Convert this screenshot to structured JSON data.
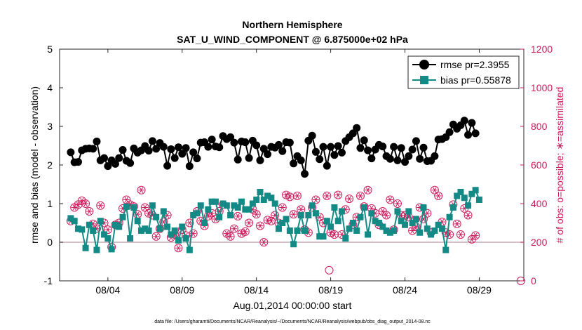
{
  "chart_data": {
    "type": "line",
    "title_line1": "Northern Hemisphere",
    "title_line2": "SAT_U_WIND_COMPONENT @ 6.875000e+02 hPa",
    "xlabel": "Aug.01,2014 00:00:00 start",
    "ylabel_left": "rmse and bias (model - observation)",
    "ylabel_right": "# of obs: o=possible; ∗=assimilated",
    "footer": "data file: /Users/gharamti/Documents/NCAR/Reanalysis/~/Documents/NCAR/Reanalysis/webpub/obs_diag_output_2014-08.nc",
    "x_range_days": [
      0.25,
      31.5
    ],
    "x_ticks": [
      {
        "day": 3.5,
        "label": "08/04"
      },
      {
        "day": 8.5,
        "label": "08/09"
      },
      {
        "day": 13.5,
        "label": "08/14"
      },
      {
        "day": 18.5,
        "label": "08/19"
      },
      {
        "day": 23.5,
        "label": "08/24"
      },
      {
        "day": 28.5,
        "label": "08/29"
      }
    ],
    "y_left_range": [
      -1,
      5
    ],
    "y_left_ticks": [
      "-1",
      "0",
      "1",
      "2",
      "3",
      "4",
      "5"
    ],
    "y_right_range": [
      0,
      1200
    ],
    "y_right_ticks": [
      "0",
      "200",
      "400",
      "600",
      "800",
      "1000",
      "1200"
    ],
    "colors": {
      "rmse": "#000000",
      "bias": "#148a87",
      "obs": "#cc1b5b",
      "zero_line": "#c9a9b5"
    },
    "series": [
      {
        "name": "rmse pr=2.3955",
        "axis": "left",
        "values": [
          2.33,
          2.07,
          2.08,
          2.38,
          2.42,
          2.43,
          2.42,
          2.61,
          2.12,
          2.18,
          1.97,
          2.12,
          2.03,
          2.18,
          2.39,
          2.11,
          2.05,
          2.43,
          2.32,
          2.38,
          2.49,
          2.37,
          2.62,
          2.42,
          2.57,
          2.47,
          1.98,
          2.41,
          2.18,
          2.46,
          2.29,
          2.44,
          1.97,
          2.33,
          2.17,
          2.58,
          2.59,
          2.47,
          2.66,
          2.48,
          2.46,
          2.75,
          2.67,
          2.72,
          2.58,
          2.14,
          2.61,
          2.59,
          2.18,
          2.63,
          2.51,
          2.12,
          2.42,
          2.28,
          2.47,
          2.45,
          2.52,
          2.36,
          2.59,
          2.58,
          2.04,
          2.23,
          2.12,
          1.77,
          2.63,
          2.76,
          2.34,
          2.15,
          2.47,
          1.98,
          2.47,
          2.26,
          2.49,
          2.32,
          2.62,
          2.72,
          2.82,
          2.96,
          2.44,
          2.64,
          2.38,
          2.17,
          2.4,
          2.52,
          2.48,
          2.23,
          2.16,
          2.47,
          2.12,
          2.44,
          2.08,
          2.23,
          2.4,
          2.62,
          2.16,
          2.45,
          2.1,
          2.11,
          2.23,
          2.66,
          2.67,
          2.72,
          2.85,
          3.05,
          2.94,
          3.03,
          3.15,
          2.78,
          3.09,
          2.82
        ]
      },
      {
        "name": "bias pr=0.55878",
        "axis": "left",
        "values": [
          0.62,
          0.55,
          0.35,
          0.33,
          -0.15,
          0.45,
          0.3,
          -0.2,
          0.55,
          0.2,
          0.1,
          -0.18,
          0.45,
          0.4,
          0.65,
          0.92,
          0.1,
          0.9,
          0.55,
          0.3,
          0.35,
          0.3,
          0.95,
          0.65,
          0.35,
          0.8,
          0.4,
          0.2,
          0.3,
          0.05,
          0.4,
          0.1,
          -0.2,
          0.7,
          0.75,
          0.95,
          0.5,
          0.85,
          1.05,
          1.05,
          0.65,
          1.0,
          0.95,
          0.7,
          0.95,
          0.9,
          1.05,
          0.85,
          0.85,
          1.0,
          1.1,
          1.3,
          1.1,
          1.2,
          1.15,
          1.0,
          0.35,
          0.5,
          0.6,
          0.3,
          -0.05,
          0.3,
          0.7,
          0.3,
          0.7,
          0.95,
          0.75,
          0.15,
          0.15,
          0.55,
          0.4,
          0.9,
          0.55,
          0.8,
          0.1,
          0.35,
          0.5,
          0.3,
          0.65,
          0.9,
          0.2,
          0.75,
          0.55,
          0.5,
          0.4,
          0.3,
          0.25,
          0.3,
          0.8,
          0.55,
          0.45,
          0.8,
          0.5,
          0.6,
          0.25,
          0.9,
          0.35,
          0.2,
          0.3,
          0.45,
          0.35,
          -0.2,
          0.65,
          0.9,
          1.2,
          1.3,
          1.15,
          0.95,
          1.25,
          1.35,
          1.1
        ]
      },
      {
        "name": "# of obs possible",
        "axis": "right",
        "marker": "circle",
        "values": [
          310,
          380,
          395,
          415,
          400,
          360,
          295,
          270,
          390,
          300,
          265,
          175,
          290,
          300,
          375,
          420,
          395,
          385,
          345,
          470,
          380,
          350,
          340,
          230,
          270,
          305,
          340,
          225,
          240,
          170,
          265,
          235,
          300,
          245,
          360,
          310,
          285,
          335,
          350,
          320,
          360,
          395,
          245,
          230,
          270,
          335,
          245,
          255,
          300,
          370,
          345,
          285,
          200,
          315,
          310,
          340,
          300,
          380,
          445,
          435,
          345,
          440,
          370,
          265,
          250,
          380,
          420,
          330,
          300,
          440,
          250,
          240,
          445,
          240,
          370,
          425,
          290,
          330,
          440,
          385,
          470,
          375,
          350,
          290,
          360,
          340,
          420,
          265,
          400,
          340,
          340,
          330,
          260,
          280,
          380,
          320,
          350,
          250,
          470,
          440,
          305,
          250,
          240,
          395,
          295,
          240,
          375,
          340,
          215,
          235,
          225,
          275,
          420,
          420,
          270,
          240,
          410,
          330,
          395,
          300,
          230,
          420,
          320
        ]
      },
      {
        "name": "# of obs assimilated",
        "axis": "right",
        "marker": "star",
        "values": [
          310,
          380,
          395,
          415,
          400,
          360,
          295,
          270,
          390,
          300,
          265,
          175,
          290,
          300,
          375,
          420,
          395,
          385,
          345,
          470,
          380,
          350,
          340,
          230,
          270,
          305,
          340,
          225,
          240,
          170,
          265,
          235,
          300,
          245,
          360,
          310,
          285,
          335,
          350,
          320,
          360,
          395,
          245,
          230,
          270,
          335,
          245,
          255,
          300,
          370,
          345,
          285,
          200,
          315,
          310,
          340,
          300,
          380,
          445,
          435,
          345,
          440,
          370,
          265,
          250,
          380,
          420,
          330,
          300,
          440,
          250,
          240,
          445,
          240,
          370,
          425,
          290,
          330,
          440,
          385,
          470,
          375,
          350,
          290,
          360,
          340,
          420,
          265,
          400,
          340,
          340,
          330,
          260,
          280,
          380,
          320,
          350,
          250,
          470,
          440,
          305,
          250,
          240,
          395,
          295,
          240,
          375,
          340,
          215,
          235,
          225,
          275,
          420,
          420,
          270,
          240,
          410,
          330,
          395,
          300,
          230,
          420,
          320
        ]
      }
    ],
    "outliers_possible": [
      {
        "day": 18.4,
        "value": 55
      },
      {
        "day": 31.3,
        "value": 0
      }
    ],
    "legend": [
      {
        "label": "rmse pr=2.3955",
        "series": "rmse"
      },
      {
        "label": "bias pr=0.55878",
        "series": "bias"
      }
    ]
  }
}
